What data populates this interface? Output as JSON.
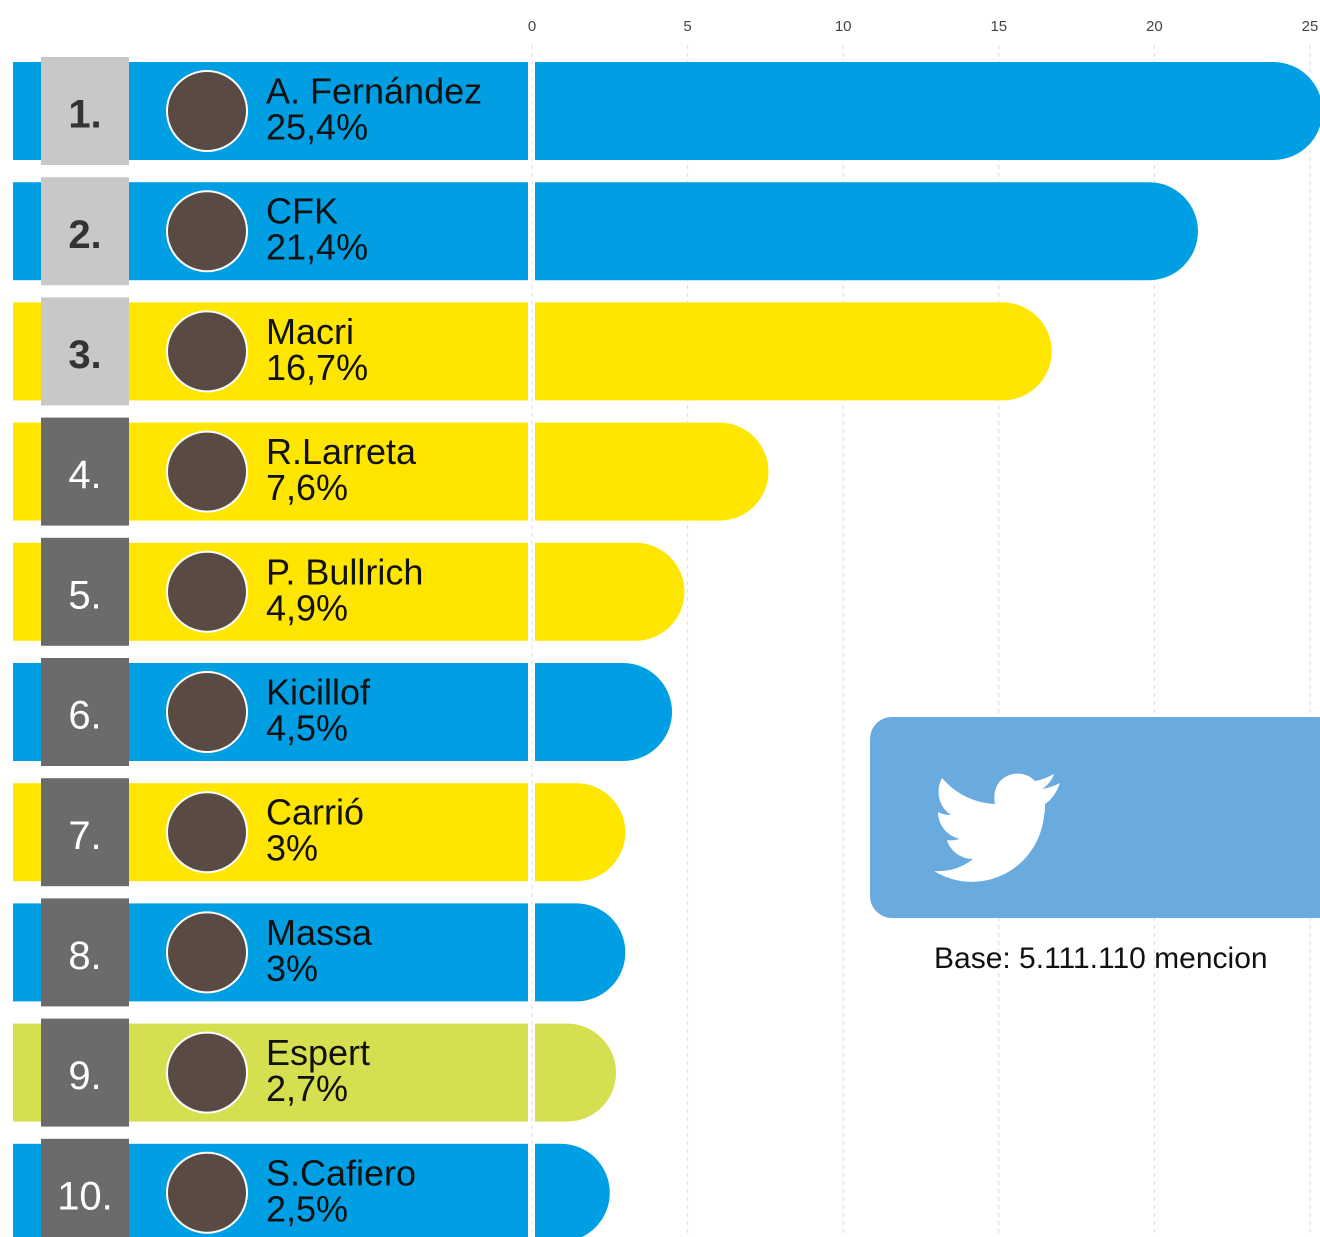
{
  "chart_data": {
    "type": "bar",
    "categories": [
      "A. Fernández",
      "CFK",
      "Macri",
      "R.Larreta",
      "P. Bullrich",
      "Kicillof",
      "Carrió",
      "Massa",
      "Espert",
      "S.Cafiero"
    ],
    "ranks": [
      "1.",
      "2.",
      "3.",
      "4.",
      "5.",
      "6.",
      "7.",
      "8.",
      "9.",
      "10."
    ],
    "values": [
      25.4,
      21.4,
      16.7,
      7.6,
      4.9,
      4.5,
      3,
      3,
      2.7,
      2.5
    ],
    "value_labels": [
      "25,4%",
      "21,4%",
      "16,7%",
      "7,6%",
      "4,9%",
      "4,5%",
      "3%",
      "3%",
      "2,7%",
      "2,5%"
    ],
    "colors": [
      "#009fe3",
      "#009fe3",
      "#ffe600",
      "#ffe600",
      "#ffe600",
      "#009fe3",
      "#ffe600",
      "#009fe3",
      "#d6df4f",
      "#009fe3"
    ],
    "xlim": [
      0,
      25
    ],
    "xticks": [
      0,
      5,
      10,
      15,
      20,
      25
    ],
    "grid": true,
    "note": "Base: 5.111.110 mencion"
  }
}
